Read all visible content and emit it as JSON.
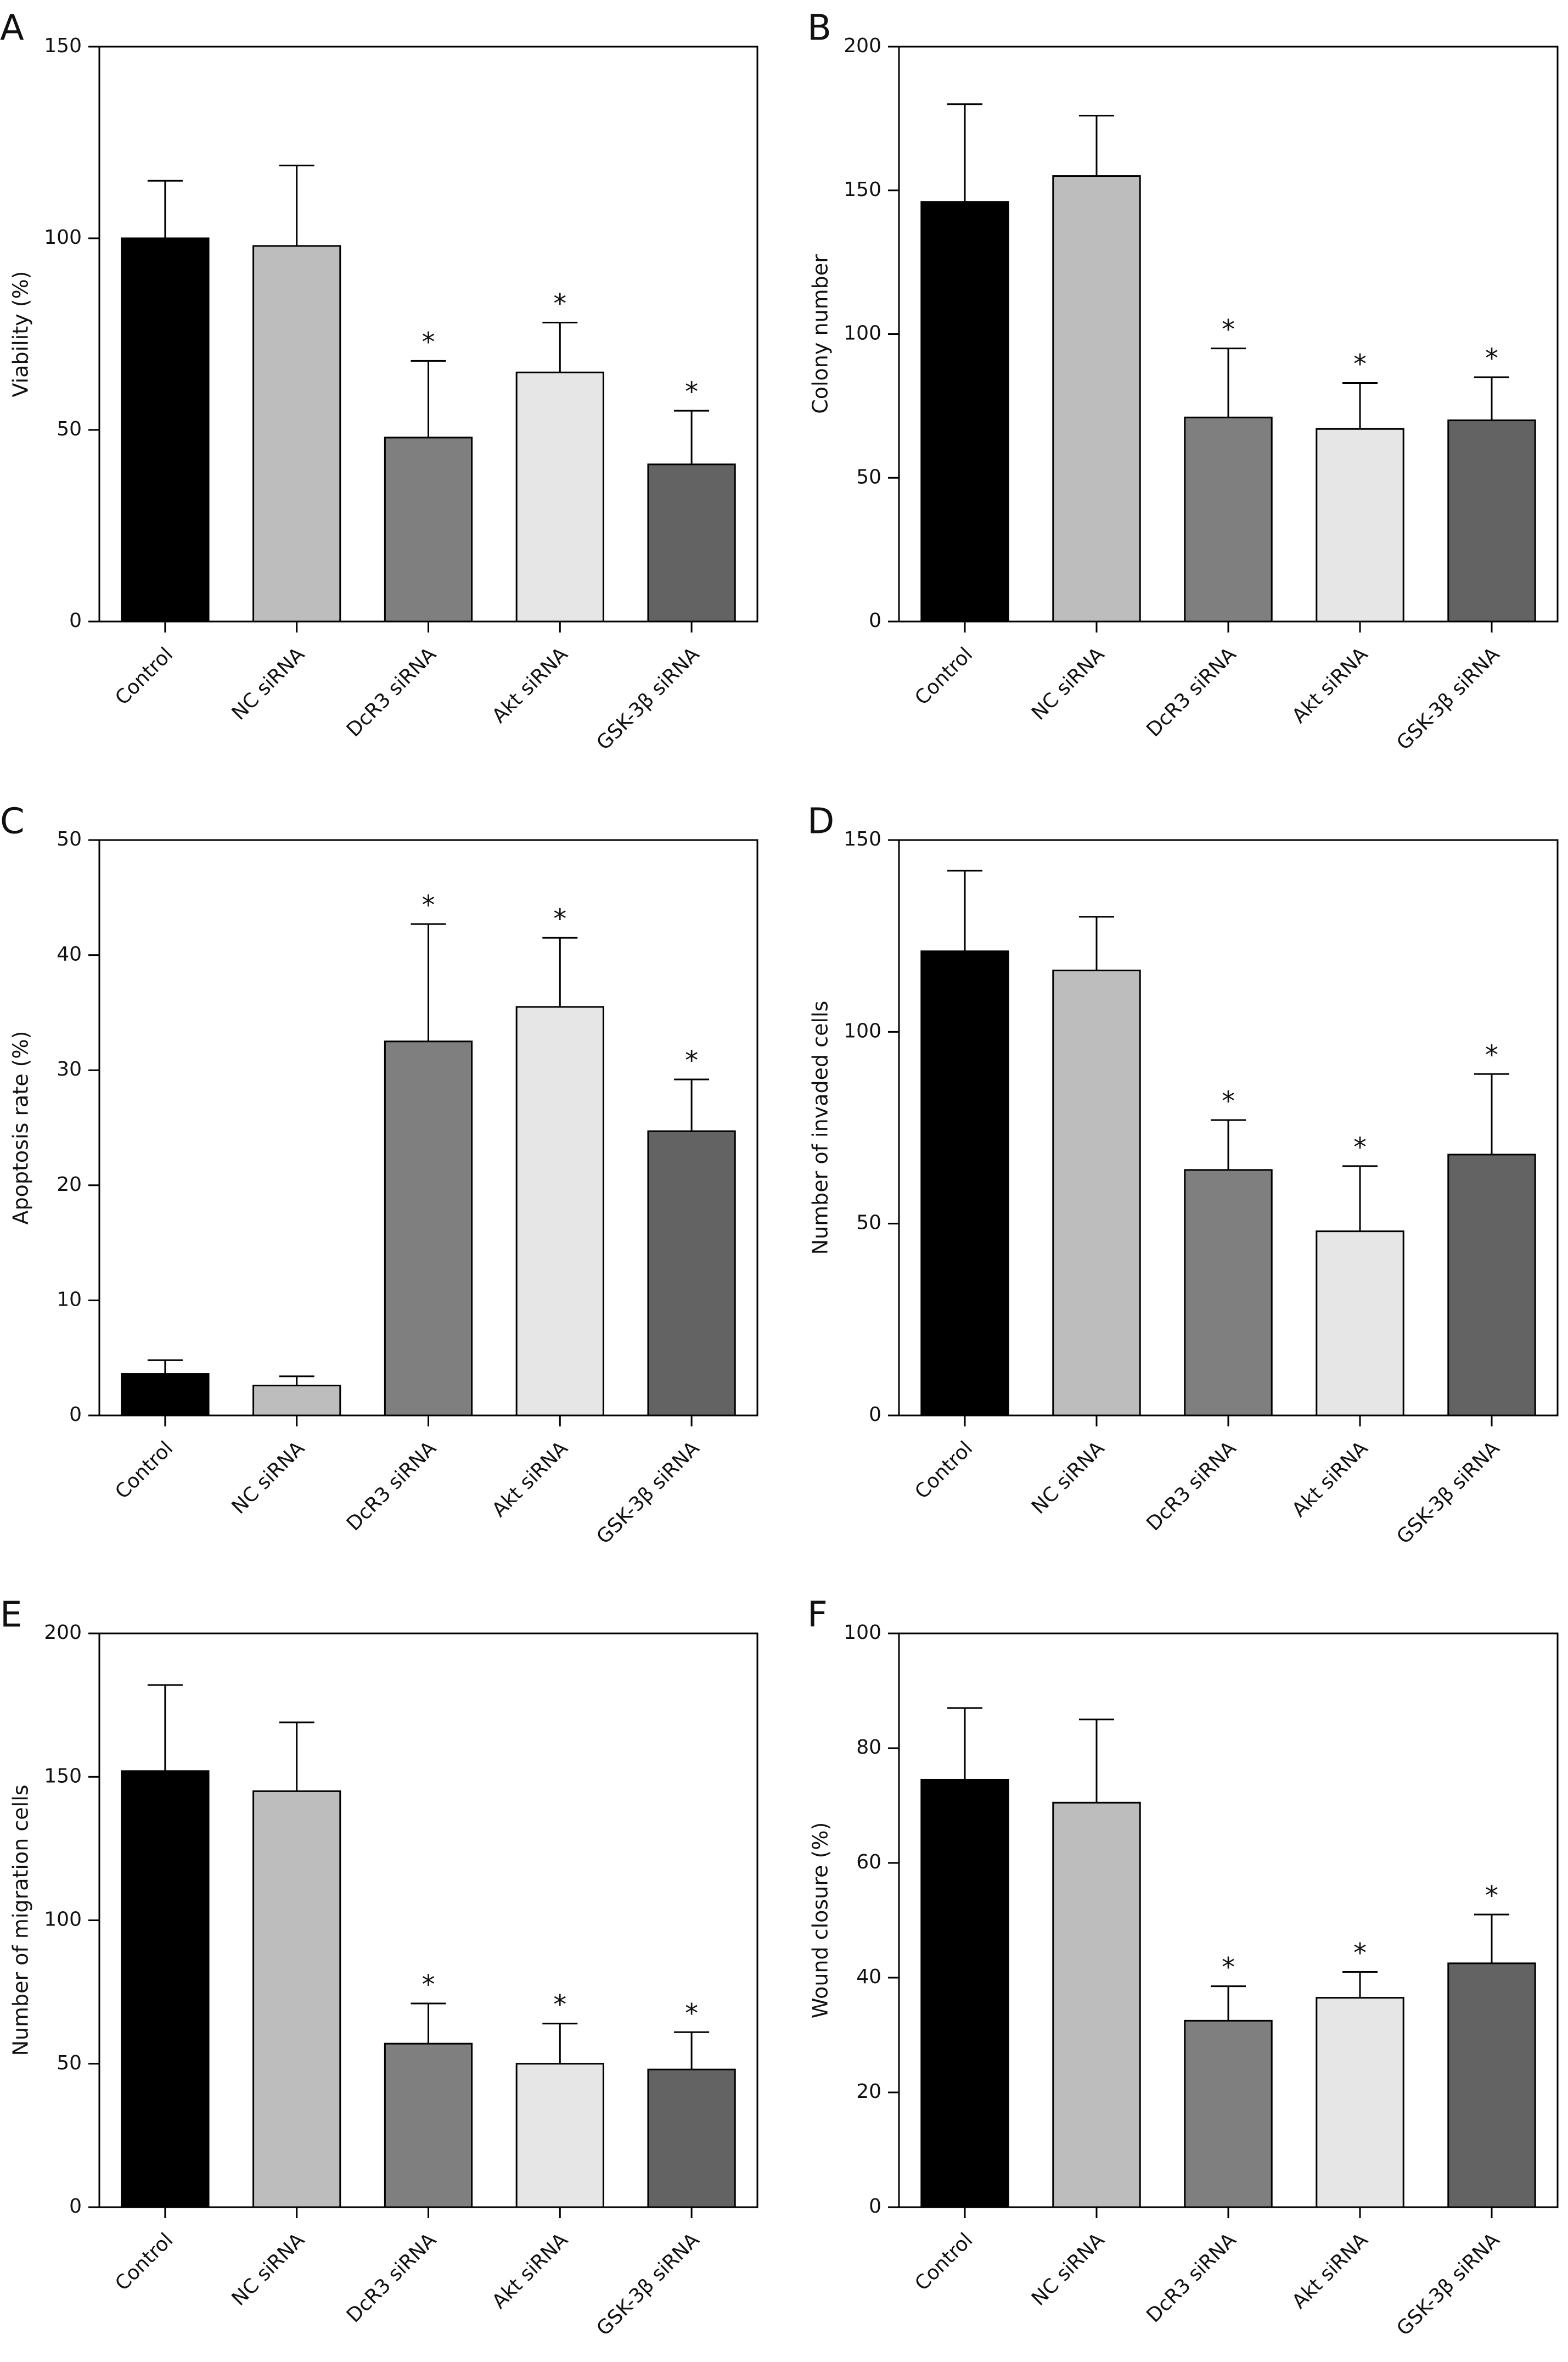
{
  "figure": {
    "categories": [
      "Control",
      "NC siRNA",
      "DcR3 siRNA",
      "Akt siRNA",
      "GSK-3β siRNA"
    ],
    "bar_colors": [
      "#000000",
      "#bdbdbd",
      "#7f7f7f",
      "#e6e6e6",
      "#636363"
    ],
    "significance_marker": "*"
  },
  "chart_data": [
    {
      "panel": "A",
      "type": "bar",
      "title": "",
      "xlabel": "",
      "ylabel": "Viability (%)",
      "ylim": [
        0,
        150
      ],
      "yticks": [
        0,
        50,
        100,
        150
      ],
      "categories": [
        "Control",
        "NC siRNA",
        "DcR3 siRNA",
        "Akt siRNA",
        "GSK-3β siRNA"
      ],
      "values": [
        100,
        98,
        48,
        65,
        41
      ],
      "errors": [
        15,
        21,
        20,
        13,
        14
      ],
      "significant": [
        false,
        false,
        true,
        true,
        true
      ],
      "legend": "none",
      "grid": false
    },
    {
      "panel": "B",
      "type": "bar",
      "title": "",
      "xlabel": "",
      "ylabel": "Colony number",
      "ylim": [
        0,
        200
      ],
      "yticks": [
        0,
        50,
        100,
        150,
        200
      ],
      "categories": [
        "Control",
        "NC siRNA",
        "DcR3 siRNA",
        "Akt siRNA",
        "GSK-3β siRNA"
      ],
      "values": [
        146,
        155,
        71,
        67,
        70
      ],
      "errors": [
        34,
        21,
        24,
        16,
        15
      ],
      "significant": [
        false,
        false,
        true,
        true,
        true
      ],
      "legend": "none",
      "grid": false
    },
    {
      "panel": "C",
      "type": "bar",
      "title": "",
      "xlabel": "",
      "ylabel": "Apoptosis rate (%)",
      "ylim": [
        0,
        50
      ],
      "yticks": [
        0,
        10,
        20,
        30,
        40,
        50
      ],
      "categories": [
        "Control",
        "NC siRNA",
        "DcR3 siRNA",
        "Akt siRNA",
        "GSK-3β siRNA"
      ],
      "values": [
        3.6,
        2.6,
        32.5,
        35.5,
        24.7
      ],
      "errors": [
        1.2,
        0.8,
        10.2,
        6.0,
        4.5
      ],
      "significant": [
        false,
        false,
        true,
        true,
        true
      ],
      "legend": "none",
      "grid": false
    },
    {
      "panel": "D",
      "type": "bar",
      "title": "",
      "xlabel": "",
      "ylabel": "Number of invaded cells",
      "ylim": [
        0,
        150
      ],
      "yticks": [
        0,
        50,
        100,
        150
      ],
      "categories": [
        "Control",
        "NC siRNA",
        "DcR3 siRNA",
        "Akt siRNA",
        "GSK-3β siRNA"
      ],
      "values": [
        121,
        116,
        64,
        48,
        68
      ],
      "errors": [
        21,
        14,
        13,
        17,
        21
      ],
      "significant": [
        false,
        false,
        true,
        true,
        true
      ],
      "legend": "none",
      "grid": false
    },
    {
      "panel": "E",
      "type": "bar",
      "title": "",
      "xlabel": "",
      "ylabel": "Number of migration cells",
      "ylim": [
        0,
        200
      ],
      "yticks": [
        0,
        50,
        100,
        150,
        200
      ],
      "categories": [
        "Control",
        "NC siRNA",
        "DcR3 siRNA",
        "Akt siRNA",
        "GSK-3β siRNA"
      ],
      "values": [
        152,
        145,
        57,
        50,
        48
      ],
      "errors": [
        30,
        24,
        14,
        14,
        13
      ],
      "significant": [
        false,
        false,
        true,
        true,
        true
      ],
      "legend": "none",
      "grid": false
    },
    {
      "panel": "F",
      "type": "bar",
      "title": "",
      "xlabel": "",
      "ylabel": "Wound closure (%)",
      "ylim": [
        0,
        100
      ],
      "yticks": [
        0,
        20,
        40,
        60,
        80,
        100
      ],
      "categories": [
        "Control",
        "NC siRNA",
        "DcR3 siRNA",
        "Akt siRNA",
        "GSK-3β siRNA"
      ],
      "values": [
        74.5,
        70.5,
        32.5,
        36.5,
        42.5
      ],
      "errors": [
        12.5,
        14.5,
        6.0,
        4.5,
        8.5
      ],
      "significant": [
        false,
        false,
        true,
        true,
        true
      ],
      "legend": "none",
      "grid": false
    }
  ]
}
